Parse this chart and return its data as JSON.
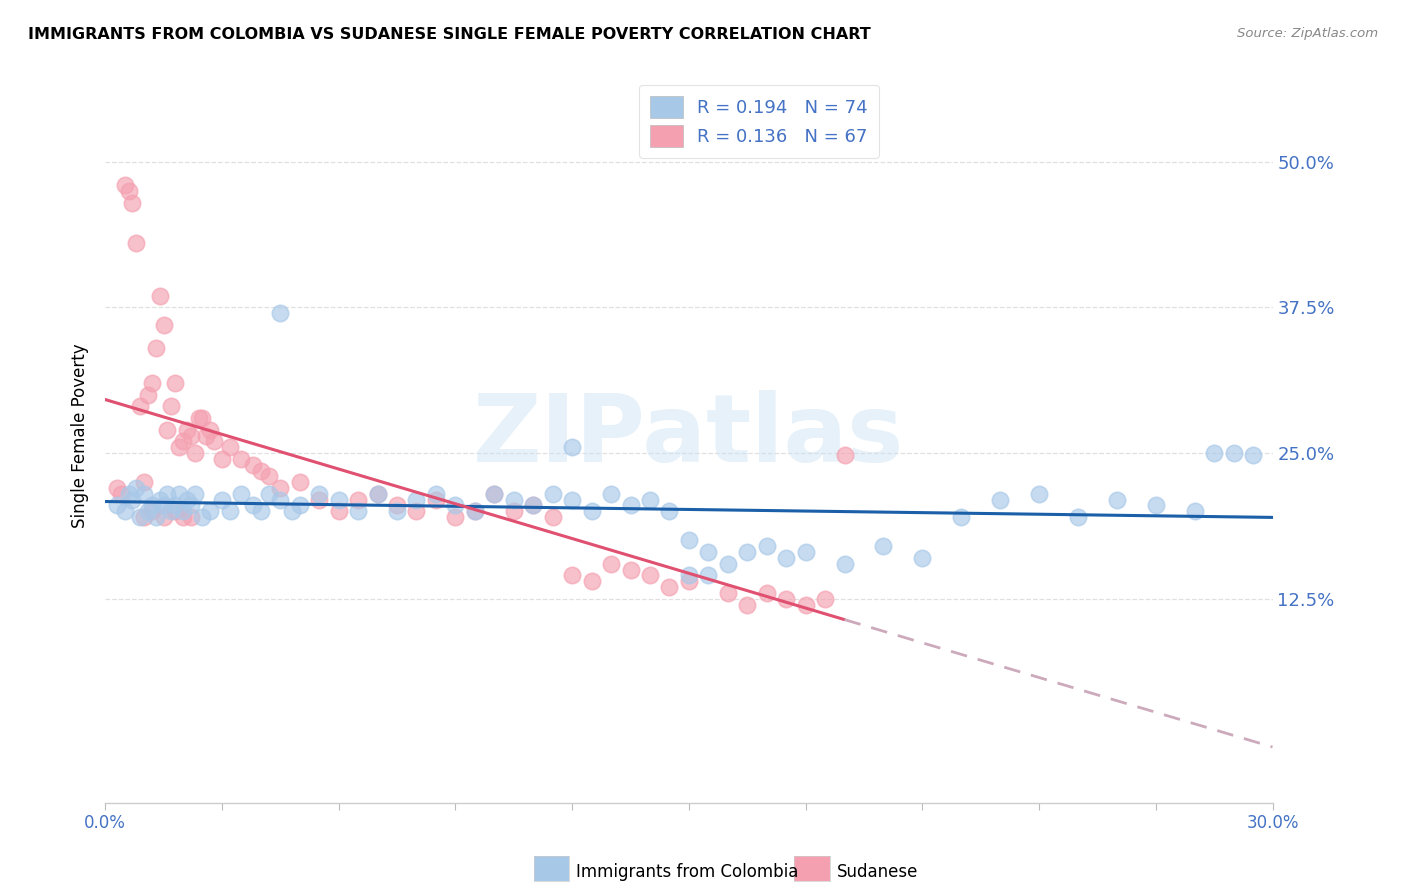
{
  "title": "IMMIGRANTS FROM COLOMBIA VS SUDANESE SINGLE FEMALE POVERTY CORRELATION CHART",
  "source": "Source: ZipAtlas.com",
  "ylabel": "Single Female Poverty",
  "y_tick_labels": [
    "12.5%",
    "25.0%",
    "37.5%",
    "50.0%"
  ],
  "y_tick_values": [
    0.125,
    0.25,
    0.375,
    0.5
  ],
  "x_range": [
    0.0,
    0.3
  ],
  "y_range": [
    -0.05,
    0.58
  ],
  "colombia_color": "#a8c8e8",
  "sudanese_color": "#f4a0b0",
  "colombia_line_color": "#1a5fa8",
  "sudanese_line_color": "#e05070",
  "colombia_R": 0.194,
  "colombia_N": 74,
  "sudanese_R": 0.136,
  "sudanese_N": 67,
  "legend_label_colombia": "Immigrants from Colombia",
  "legend_label_sudanese": "Sudanese",
  "legend_text_color": "#4472c4",
  "watermark": "ZIPatlas",
  "grid_color": "#e0e0e0",
  "x_left_label": "0.0%",
  "x_right_label": "30.0%",
  "colombia_x": [
    0.003,
    0.005,
    0.006,
    0.007,
    0.008,
    0.009,
    0.01,
    0.011,
    0.012,
    0.013,
    0.014,
    0.015,
    0.016,
    0.017,
    0.018,
    0.019,
    0.02,
    0.021,
    0.022,
    0.023,
    0.025,
    0.027,
    0.03,
    0.032,
    0.035,
    0.038,
    0.04,
    0.042,
    0.045,
    0.048,
    0.05,
    0.055,
    0.06,
    0.065,
    0.07,
    0.075,
    0.08,
    0.085,
    0.09,
    0.095,
    0.1,
    0.105,
    0.11,
    0.115,
    0.12,
    0.125,
    0.13,
    0.135,
    0.14,
    0.145,
    0.15,
    0.155,
    0.16,
    0.165,
    0.17,
    0.175,
    0.18,
    0.19,
    0.2,
    0.21,
    0.045,
    0.12,
    0.22,
    0.23,
    0.24,
    0.25,
    0.26,
    0.27,
    0.28,
    0.285,
    0.15,
    0.155,
    0.29,
    0.295
  ],
  "colombia_y": [
    0.205,
    0.2,
    0.215,
    0.21,
    0.22,
    0.195,
    0.215,
    0.2,
    0.205,
    0.195,
    0.21,
    0.205,
    0.215,
    0.2,
    0.205,
    0.215,
    0.2,
    0.21,
    0.205,
    0.215,
    0.195,
    0.2,
    0.21,
    0.2,
    0.215,
    0.205,
    0.2,
    0.215,
    0.21,
    0.2,
    0.205,
    0.215,
    0.21,
    0.2,
    0.215,
    0.2,
    0.21,
    0.215,
    0.205,
    0.2,
    0.215,
    0.21,
    0.205,
    0.215,
    0.21,
    0.2,
    0.215,
    0.205,
    0.21,
    0.2,
    0.175,
    0.165,
    0.155,
    0.165,
    0.17,
    0.16,
    0.165,
    0.155,
    0.17,
    0.16,
    0.37,
    0.255,
    0.195,
    0.21,
    0.215,
    0.195,
    0.21,
    0.205,
    0.2,
    0.25,
    0.145,
    0.145,
    0.25,
    0.248
  ],
  "sudanese_x": [
    0.003,
    0.004,
    0.005,
    0.006,
    0.007,
    0.008,
    0.009,
    0.01,
    0.011,
    0.012,
    0.013,
    0.014,
    0.015,
    0.016,
    0.017,
    0.018,
    0.019,
    0.02,
    0.021,
    0.022,
    0.023,
    0.024,
    0.025,
    0.026,
    0.027,
    0.028,
    0.03,
    0.032,
    0.035,
    0.038,
    0.04,
    0.042,
    0.045,
    0.05,
    0.055,
    0.06,
    0.065,
    0.07,
    0.075,
    0.08,
    0.085,
    0.09,
    0.095,
    0.1,
    0.105,
    0.11,
    0.115,
    0.12,
    0.125,
    0.13,
    0.135,
    0.14,
    0.145,
    0.15,
    0.16,
    0.165,
    0.17,
    0.175,
    0.18,
    0.185,
    0.01,
    0.012,
    0.015,
    0.018,
    0.02,
    0.022,
    0.19
  ],
  "sudanese_y": [
    0.22,
    0.215,
    0.48,
    0.475,
    0.465,
    0.43,
    0.29,
    0.225,
    0.3,
    0.31,
    0.34,
    0.385,
    0.36,
    0.27,
    0.29,
    0.31,
    0.255,
    0.26,
    0.27,
    0.265,
    0.25,
    0.28,
    0.28,
    0.265,
    0.27,
    0.26,
    0.245,
    0.255,
    0.245,
    0.24,
    0.235,
    0.23,
    0.22,
    0.225,
    0.21,
    0.2,
    0.21,
    0.215,
    0.205,
    0.2,
    0.21,
    0.195,
    0.2,
    0.215,
    0.2,
    0.205,
    0.195,
    0.145,
    0.14,
    0.155,
    0.15,
    0.145,
    0.135,
    0.14,
    0.13,
    0.12,
    0.13,
    0.125,
    0.12,
    0.125,
    0.195,
    0.2,
    0.195,
    0.2,
    0.195,
    0.195,
    0.248
  ]
}
